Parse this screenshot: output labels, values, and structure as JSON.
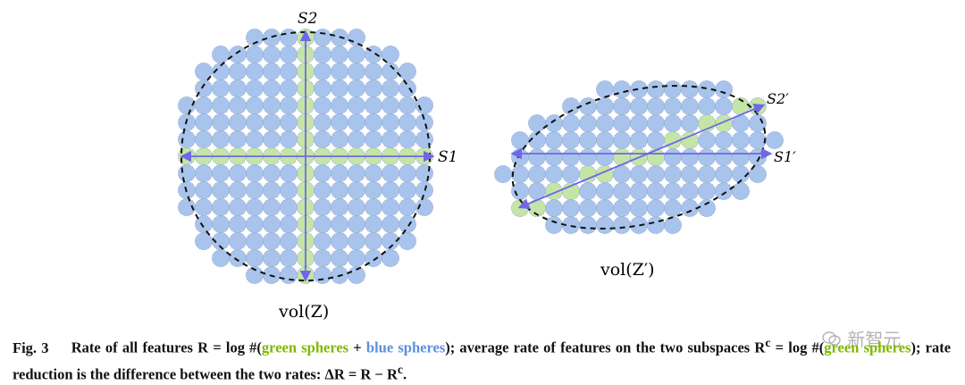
{
  "figure": {
    "left_panel": {
      "axis_labels": {
        "s1": "S1",
        "s2": "S2"
      },
      "volume_label": "vol(Z)"
    },
    "right_panel": {
      "axis_labels": {
        "s1": "S1′",
        "s2": "S2′"
      },
      "volume_label": "vol(Z′)"
    },
    "colors": {
      "blue_sphere": "#a9c4ec",
      "green_sphere": "#c5e5a7",
      "sphere_edge": "#8da6c9",
      "axis": "#6f67e8",
      "boundary": "#111111"
    }
  },
  "caption": {
    "fig_label": "Fig. 3",
    "t1": "Rate of all features",
    "r_eq": "R = log #(",
    "green": "green spheres",
    "plus": " + ",
    "blue": "blue spheres",
    "t2": "); average rate of features on the two subspaces R",
    "rc_sup": "c",
    "rc_eq": " = log #(",
    "t3": "); rate reduction is the difference between the two rates: ΔR = R − R",
    "tail": "."
  },
  "watermark": {
    "text": "新智元"
  }
}
